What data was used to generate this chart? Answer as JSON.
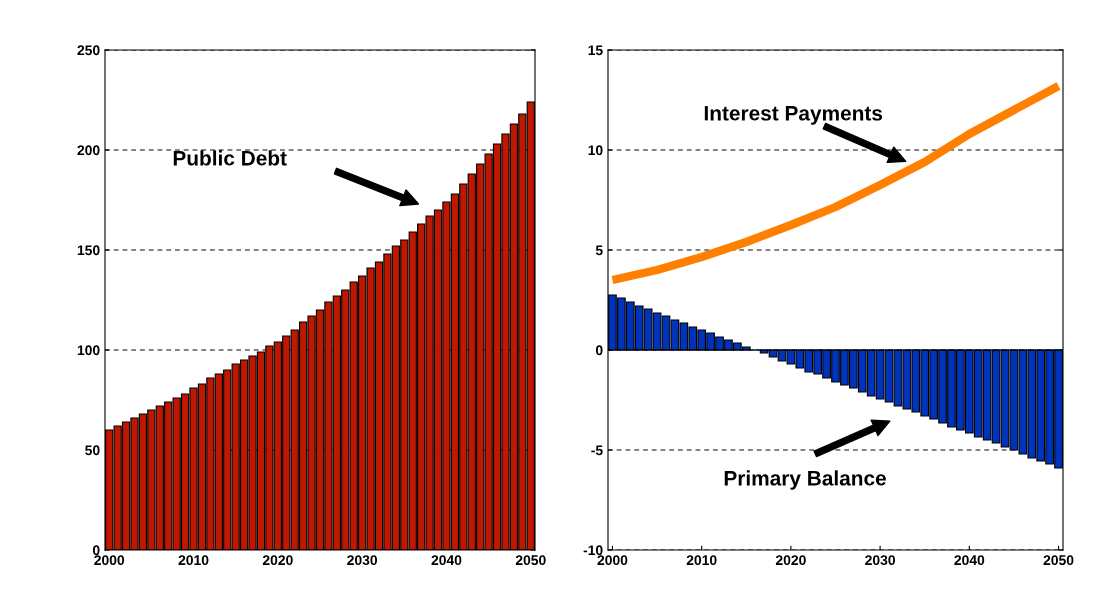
{
  "chart_data": [
    {
      "type": "bar",
      "x": [
        2000,
        2001,
        2002,
        2003,
        2004,
        2005,
        2006,
        2007,
        2008,
        2009,
        2010,
        2011,
        2012,
        2013,
        2014,
        2015,
        2016,
        2017,
        2018,
        2019,
        2020,
        2021,
        2022,
        2023,
        2024,
        2025,
        2026,
        2027,
        2028,
        2029,
        2030,
        2031,
        2032,
        2033,
        2034,
        2035,
        2036,
        2037,
        2038,
        2039,
        2040,
        2041,
        2042,
        2043,
        2044,
        2045,
        2046,
        2047,
        2048,
        2049,
        2050
      ],
      "values": [
        60,
        62,
        64,
        66,
        68,
        70,
        72,
        74,
        76,
        78,
        81,
        83,
        86,
        88,
        90,
        93,
        95,
        97,
        99,
        102,
        104,
        107,
        110,
        114,
        117,
        120,
        124,
        127,
        130,
        134,
        137,
        141,
        144,
        148,
        152,
        155,
        159,
        163,
        167,
        170,
        174,
        178,
        183,
        188,
        193,
        198,
        203,
        208,
        213,
        218,
        224
      ],
      "color": "#c01800",
      "xlim": [
        1999.5,
        2050.5
      ],
      "xticks": [
        2000,
        2010,
        2020,
        2030,
        2040,
        2050
      ],
      "ylim": [
        0,
        250
      ],
      "yticks": [
        0,
        50,
        100,
        150,
        200,
        250
      ],
      "grid": "y",
      "annotations": [
        "Public Debt"
      ]
    },
    {
      "type": "bar",
      "x": [
        2000,
        2001,
        2002,
        2003,
        2004,
        2005,
        2006,
        2007,
        2008,
        2009,
        2010,
        2011,
        2012,
        2013,
        2014,
        2015,
        2016,
        2017,
        2018,
        2019,
        2020,
        2021,
        2022,
        2023,
        2024,
        2025,
        2026,
        2027,
        2028,
        2029,
        2030,
        2031,
        2032,
        2033,
        2034,
        2035,
        2036,
        2037,
        2038,
        2039,
        2040,
        2041,
        2042,
        2043,
        2044,
        2045,
        2046,
        2047,
        2048,
        2049,
        2050
      ],
      "series": [
        {
          "type": "bar",
          "color": "#0033bb",
          "values": [
            2.75,
            2.6,
            2.4,
            2.2,
            2.05,
            1.85,
            1.7,
            1.5,
            1.35,
            1.15,
            1.0,
            0.85,
            0.65,
            0.5,
            0.35,
            0.15,
            0,
            -0.15,
            -0.35,
            -0.55,
            -0.7,
            -0.9,
            -1.1,
            -1.2,
            -1.4,
            -1.6,
            -1.75,
            -1.9,
            -2.1,
            -2.3,
            -2.45,
            -2.6,
            -2.8,
            -2.95,
            -3.1,
            -3.3,
            -3.45,
            -3.65,
            -3.85,
            -4.0,
            -4.15,
            -4.35,
            -4.5,
            -4.65,
            -4.85,
            -5.0,
            -5.2,
            -5.4,
            -5.55,
            -5.7,
            -5.9
          ]
        },
        {
          "type": "line",
          "color": "#ff8000",
          "x": [
            2000,
            2005,
            2010,
            2015,
            2020,
            2025,
            2030,
            2035,
            2040,
            2045,
            2050
          ],
          "values": [
            3.5,
            4.0,
            4.65,
            5.4,
            6.25,
            7.15,
            8.25,
            9.4,
            10.8,
            12.0,
            13.2
          ]
        }
      ],
      "xlim": [
        1999.5,
        2050.5
      ],
      "xticks": [
        2000,
        2010,
        2020,
        2030,
        2040,
        2050
      ],
      "ylim": [
        -10,
        15
      ],
      "yticks": [
        -10,
        -5,
        0,
        5,
        10,
        15
      ],
      "grid": "y",
      "annotations": [
        "Interest Payments",
        "Primary Balance"
      ]
    }
  ]
}
